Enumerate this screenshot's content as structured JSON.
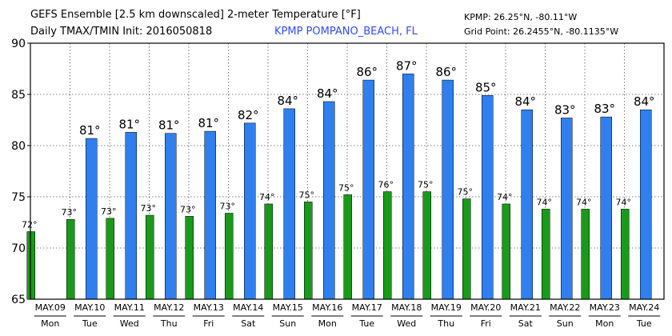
{
  "header": {
    "title_line1": "GEFS Ensemble [2.5 km downscaled] 2-meter Temperature [°F]",
    "title_line2": "Daily TMAX/TMIN Init: 2016050818",
    "station": "KPMP POMPANO_BEACH, FL",
    "coords": "KPMP: 26.25°N, -80.11°W",
    "grid_point": "Grid Point: 26.2455°N, -80.1135°W"
  },
  "chart_data": {
    "type": "bar",
    "title": "GEFS Ensemble [2.5 km downscaled] 2-meter Temperature [°F]",
    "ylim": [
      65,
      90
    ],
    "yticks": [
      65,
      70,
      75,
      80,
      85,
      90
    ],
    "grid": true,
    "categories": [
      "MAY.09",
      "MAY.10",
      "MAY.11",
      "MAY.12",
      "MAY.13",
      "MAY.14",
      "MAY.15",
      "MAY.16",
      "MAY.17",
      "MAY.18",
      "MAY.19",
      "MAY.20",
      "MAY.21",
      "MAY.22",
      "MAY.23",
      "MAY.24"
    ],
    "days": [
      "Mon",
      "Tue",
      "Wed",
      "Thu",
      "Fri",
      "Sat",
      "Sun",
      "Mon",
      "Tue",
      "Wed",
      "Thu",
      "Fri",
      "Sat",
      "Sun",
      "Mon",
      "Tue"
    ],
    "series": [
      {
        "key": "tmax",
        "color": "#2f7fef",
        "values": [
          null,
          80.7,
          81.3,
          81.2,
          81.4,
          82.2,
          83.6,
          84.3,
          86.4,
          87.0,
          86.4,
          84.9,
          83.5,
          82.7,
          82.8,
          83.5
        ],
        "labels": [
          "",
          "81°",
          "81°",
          "81°",
          "81°",
          "82°",
          "84°",
          "84°",
          "86°",
          "87°",
          "86°",
          "85°",
          "84°",
          "83°",
          "83°",
          "84°"
        ]
      },
      {
        "key": "tmin",
        "color": "#1a9a1a",
        "values": [
          71.6,
          72.8,
          72.9,
          73.2,
          73.1,
          73.4,
          74.3,
          74.5,
          75.2,
          75.5,
          75.5,
          74.8,
          74.3,
          73.8,
          73.8,
          73.8
        ],
        "labels": [
          "72°",
          "73°",
          "73°",
          "73°",
          "73°",
          "73°",
          "74°",
          "75°",
          "75°",
          "76°",
          "75°",
          "75°",
          "74°",
          "74°",
          "74°",
          "74°"
        ]
      }
    ]
  }
}
